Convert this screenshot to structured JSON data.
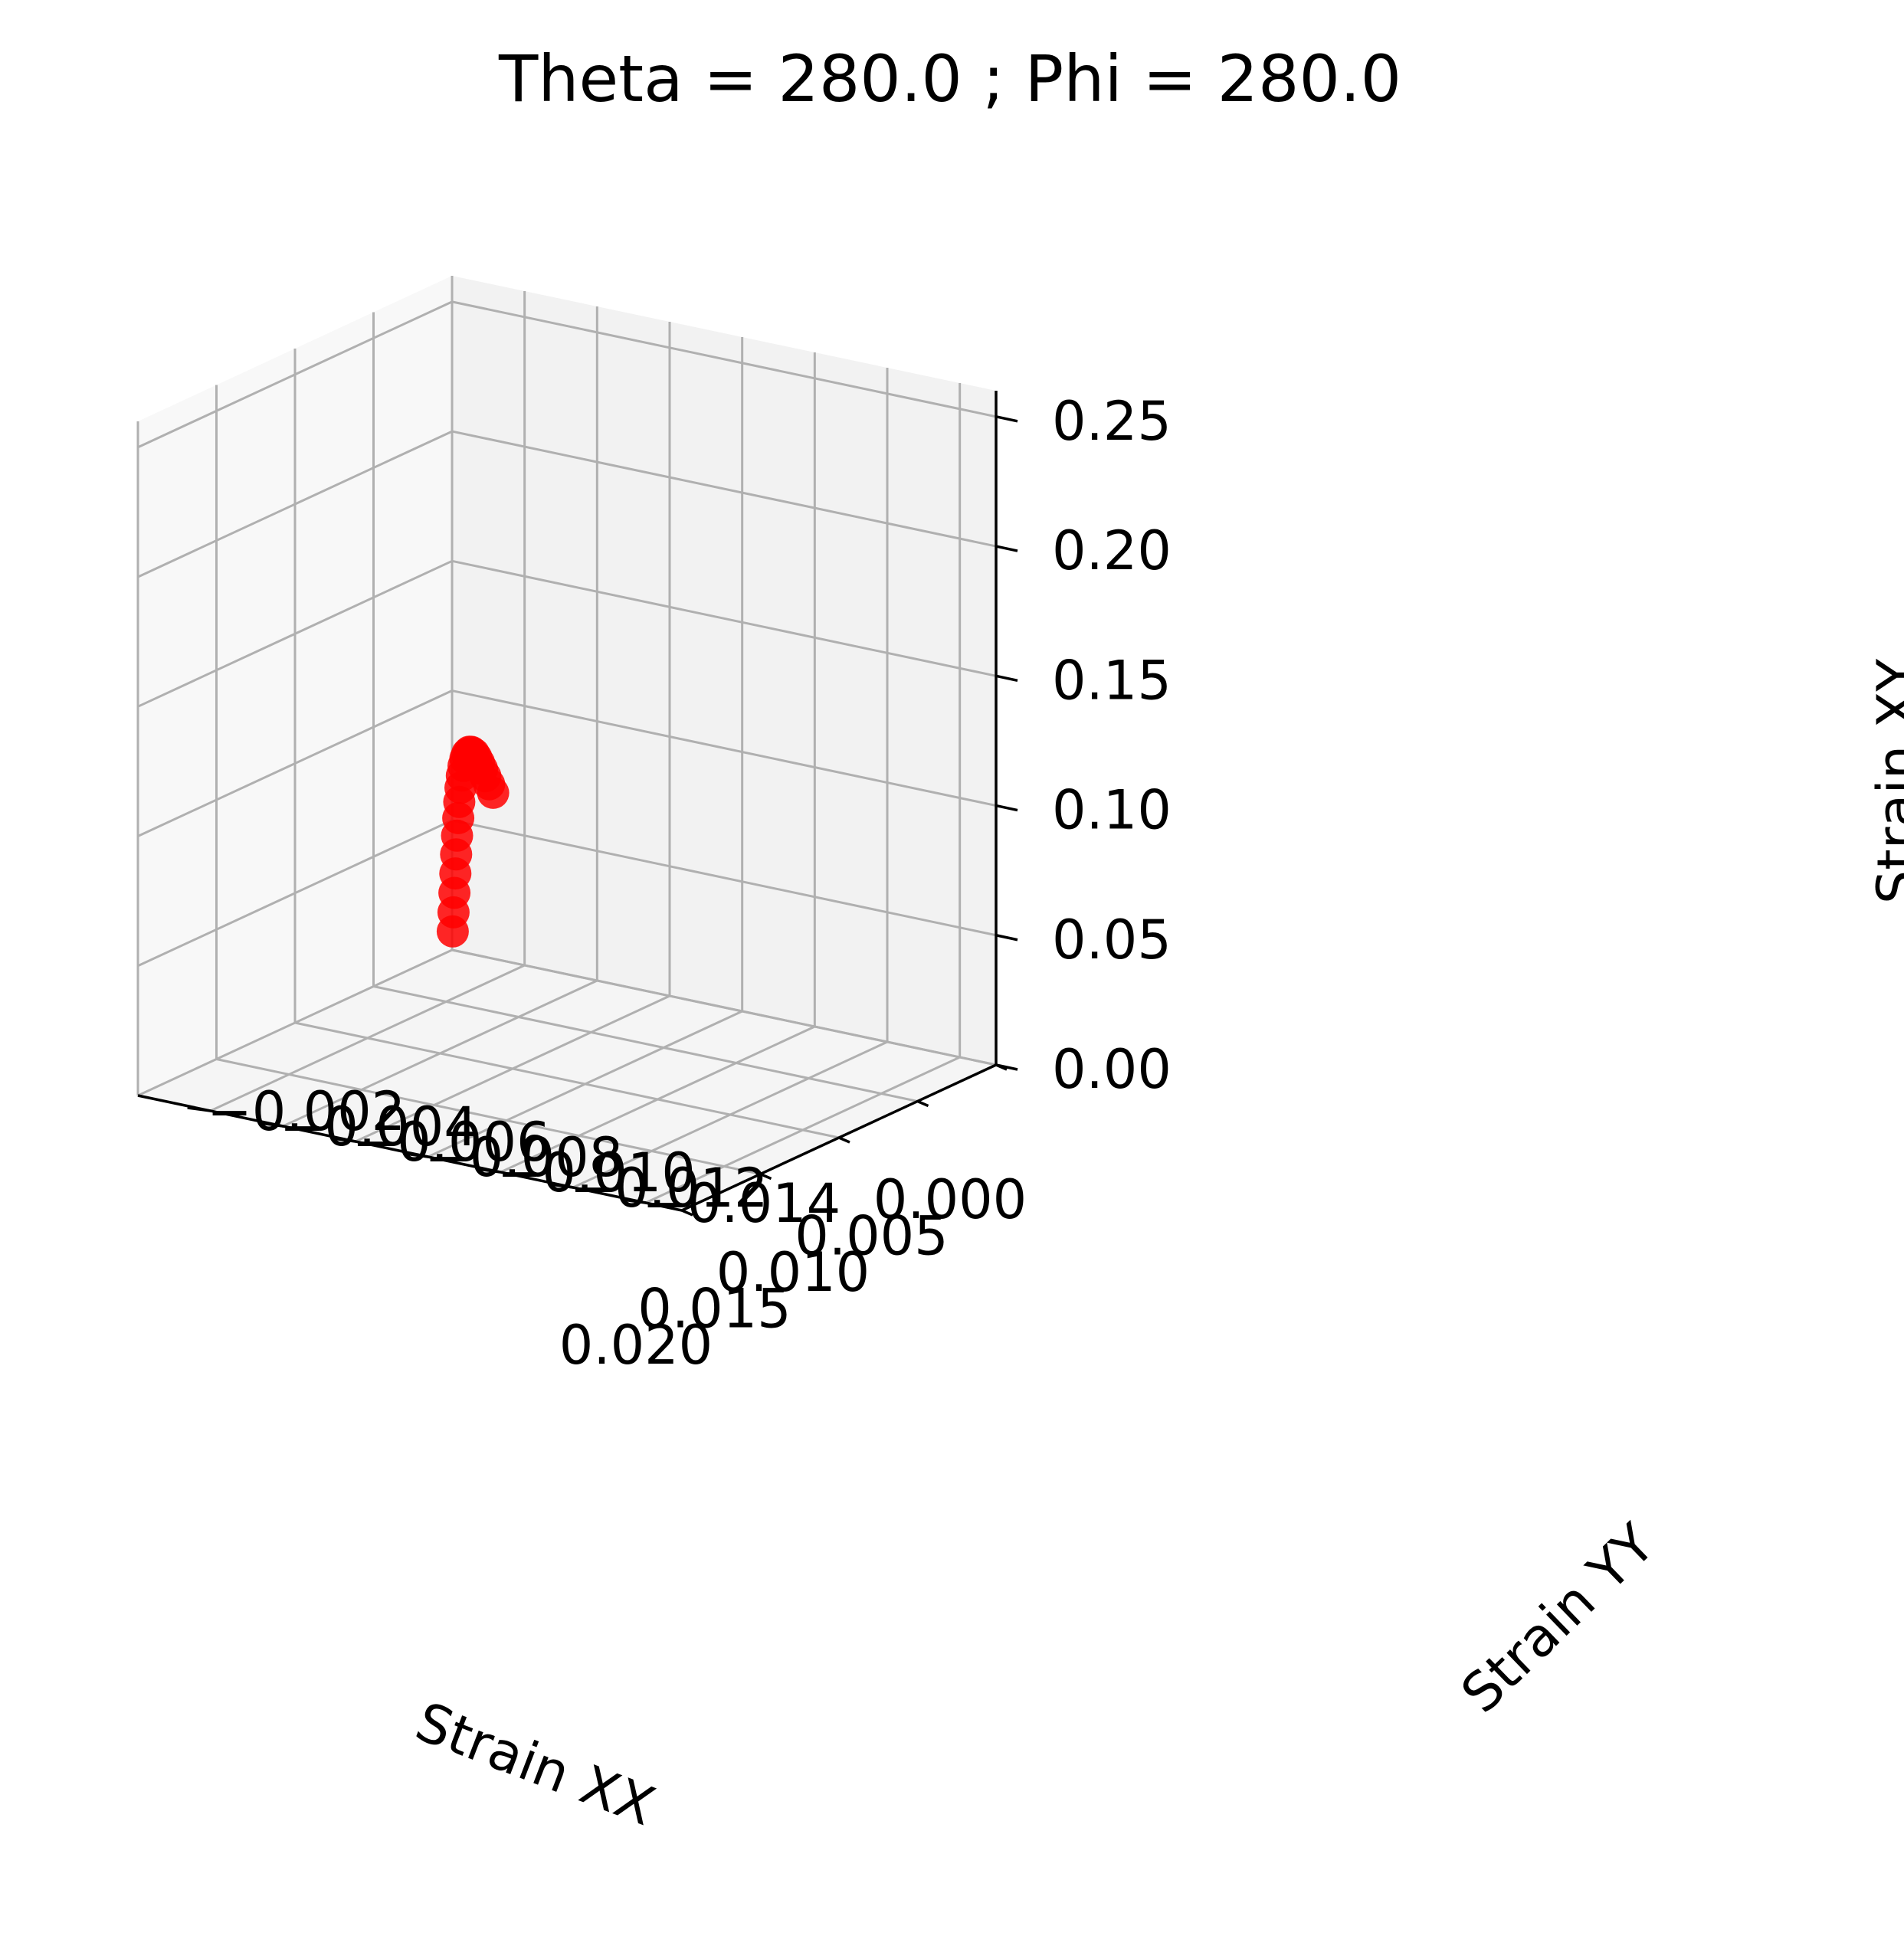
{
  "chart_data": {
    "type": "scatter",
    "projection": "3d",
    "title": "Theta = 280.0 ; Phi = 280.0",
    "xlabel": "Strain XX",
    "ylabel": "Strain YY",
    "zlabel": "Strain XY",
    "xlim": [
      0.0,
      0.02
    ],
    "ylim": [
      -0.015,
      0.0
    ],
    "zlim": [
      0.0,
      0.26
    ],
    "xticks": [
      "0.000",
      "0.005",
      "0.010",
      "0.015",
      "0.020"
    ],
    "yticks": [
      "−0.014",
      "−0.012",
      "−0.010",
      "−0.008",
      "−0.006",
      "−0.004",
      "−0.002"
    ],
    "zticks": [
      "0.00",
      "0.05",
      "0.10",
      "0.15",
      "0.20",
      "0.25"
    ],
    "grid": true,
    "marker_color": "#ff0000",
    "points": {
      "x": [
        7e-05,
        0.00014,
        0.00022,
        0.0003,
        0.00039,
        0.00049,
        0.0006,
        0.00072,
        0.00085,
        0.00099,
        0.00114,
        0.0013,
        0.00148,
        0.00167,
        0.00189,
        0.00212,
        0.00238,
        0.00267,
        0.00299,
        0.00335,
        0.00376,
        0.00422
      ],
      "y": [
        -5e-05,
        -0.0001,
        -0.00016,
        -0.00022,
        -0.00028,
        -0.00035,
        -0.00043,
        -0.00051,
        -0.0006,
        -0.0007,
        -0.00081,
        -0.00093,
        -0.00106,
        -0.0012,
        -0.00135,
        -0.00152,
        -0.0017,
        -0.0019,
        -0.00212,
        -0.00237,
        -0.00265,
        -0.00296
      ],
      "z": [
        0.0075,
        0.0152,
        0.0231,
        0.031,
        0.0388,
        0.0465,
        0.0538,
        0.0606,
        0.0667,
        0.0721,
        0.0766,
        0.0802,
        0.0829,
        0.0847,
        0.0857,
        0.0861,
        0.0859,
        0.0853,
        0.0844,
        0.0834,
        0.0823,
        0.0812
      ]
    }
  }
}
